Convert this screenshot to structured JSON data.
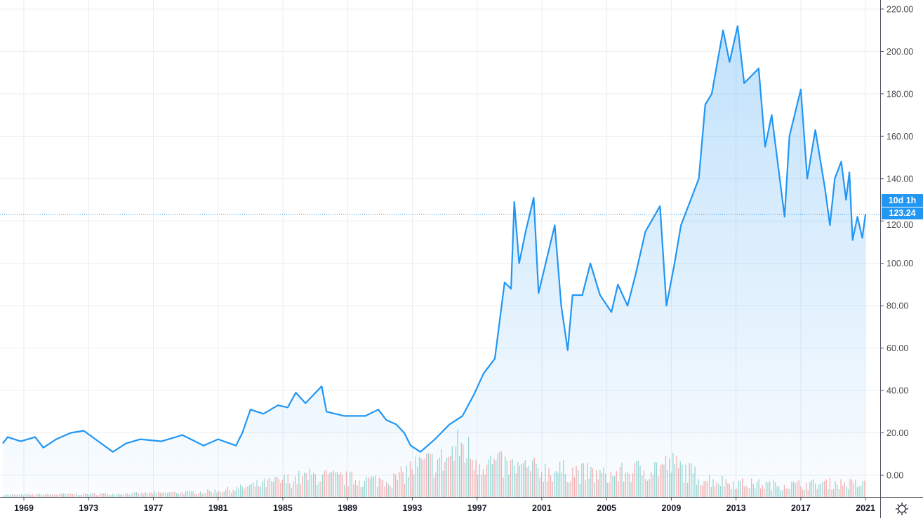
{
  "chart_data": {
    "type": "area",
    "title": "",
    "xlabel": "",
    "ylabel": "",
    "ylim": [
      -5,
      225
    ],
    "xlim": [
      1967.7,
      2022.0
    ],
    "y_ticks": [
      "220.00",
      "200.00",
      "180.00",
      "160.00",
      "140.00",
      "120.00",
      "100.00",
      "80.00",
      "60.00",
      "40.00",
      "20.00",
      "0.00"
    ],
    "y_tick_values": [
      220,
      200,
      180,
      160,
      140,
      120,
      100,
      80,
      60,
      40,
      20,
      0
    ],
    "x_ticks": [
      "1969",
      "1973",
      "1977",
      "1981",
      "1985",
      "1989",
      "1993",
      "1997",
      "2001",
      "2005",
      "2009",
      "2013",
      "2017",
      "2021"
    ],
    "grid": true,
    "last_price": "123.24",
    "last_price_value": 123.24,
    "interval_label": "10d 1h",
    "colors": {
      "line": "#2196f3",
      "fill": "#2196f3",
      "volume_up": "#26a69a",
      "volume_down": "#ef5350",
      "grid": "#e9eef3"
    },
    "series": [
      {
        "x": [
          1967.7,
          1968.0,
          1968.8,
          1969.7,
          1970.2,
          1971.0,
          1971.9,
          1972.7,
          1973.6,
          1974.5,
          1975.3,
          1976.2,
          1977.5,
          1978.8,
          1980.1,
          1981.0,
          1982.1,
          1982.5,
          1983.0,
          1983.8,
          1984.7,
          1985.3,
          1985.8,
          1986.4,
          1987.4,
          1987.7,
          1988.8,
          1990.1,
          1990.9,
          1991.4,
          1992.0,
          1992.5,
          1992.9,
          1993.5,
          1994.4,
          1995.3,
          1996.1,
          1996.8,
          1997.4,
          1998.1,
          1998.7,
          1999.1,
          1999.3,
          1999.6,
          2000.0,
          2000.5,
          2000.8,
          2001.8,
          2002.2,
          2002.6,
          2002.9,
          2003.5,
          2004.0,
          2004.6,
          2005.3,
          2005.7,
          2006.3,
          2006.8,
          2007.4,
          2008.3,
          2008.7,
          2009.2,
          2009.6,
          2010.2,
          2010.7,
          2011.1,
          2011.5,
          2012.2,
          2012.6,
          2013.1,
          2013.5,
          2014.4,
          2014.8,
          2015.2,
          2016.0,
          2016.3,
          2017.0,
          2017.4,
          2017.9,
          2018.5,
          2018.8,
          2019.1,
          2019.5,
          2019.8,
          2020.0,
          2020.2,
          2020.5,
          2020.8,
          2021.0
        ],
        "values": [
          15,
          18,
          16,
          18,
          13,
          17,
          20,
          21,
          16,
          11,
          15,
          17,
          16,
          19,
          14,
          17,
          14,
          20,
          31,
          29,
          33,
          32,
          39,
          34,
          42,
          30,
          28,
          28,
          31,
          26,
          24,
          20,
          14,
          11,
          17,
          24,
          28,
          38,
          48,
          55,
          91,
          88,
          129,
          100,
          115,
          131,
          86,
          118,
          80,
          59,
          85,
          85,
          100,
          85,
          77,
          90,
          80,
          95,
          115,
          127,
          80,
          100,
          118,
          130,
          140,
          175,
          180,
          210,
          195,
          212,
          185,
          192,
          155,
          170,
          122,
          160,
          182,
          140,
          163,
          135,
          118,
          140,
          148,
          130,
          143,
          111,
          122,
          112,
          123.24
        ]
      }
    ],
    "volume_profile": {
      "x": [
        1968,
        1972,
        1976,
        1980,
        1982,
        1984,
        1987,
        1990,
        1992,
        1993,
        1995,
        1996,
        1997,
        1999,
        2001,
        2003,
        2005,
        2008,
        2009,
        2011,
        2013,
        2015,
        2017,
        2019,
        2021
      ],
      "values": [
        1,
        1.5,
        2,
        3,
        5,
        9,
        14,
        11,
        12,
        20,
        25,
        35,
        25,
        20,
        18,
        17,
        14,
        20,
        22,
        12,
        9,
        8,
        8,
        9,
        8
      ]
    }
  },
  "settings_icon": "gear-icon"
}
